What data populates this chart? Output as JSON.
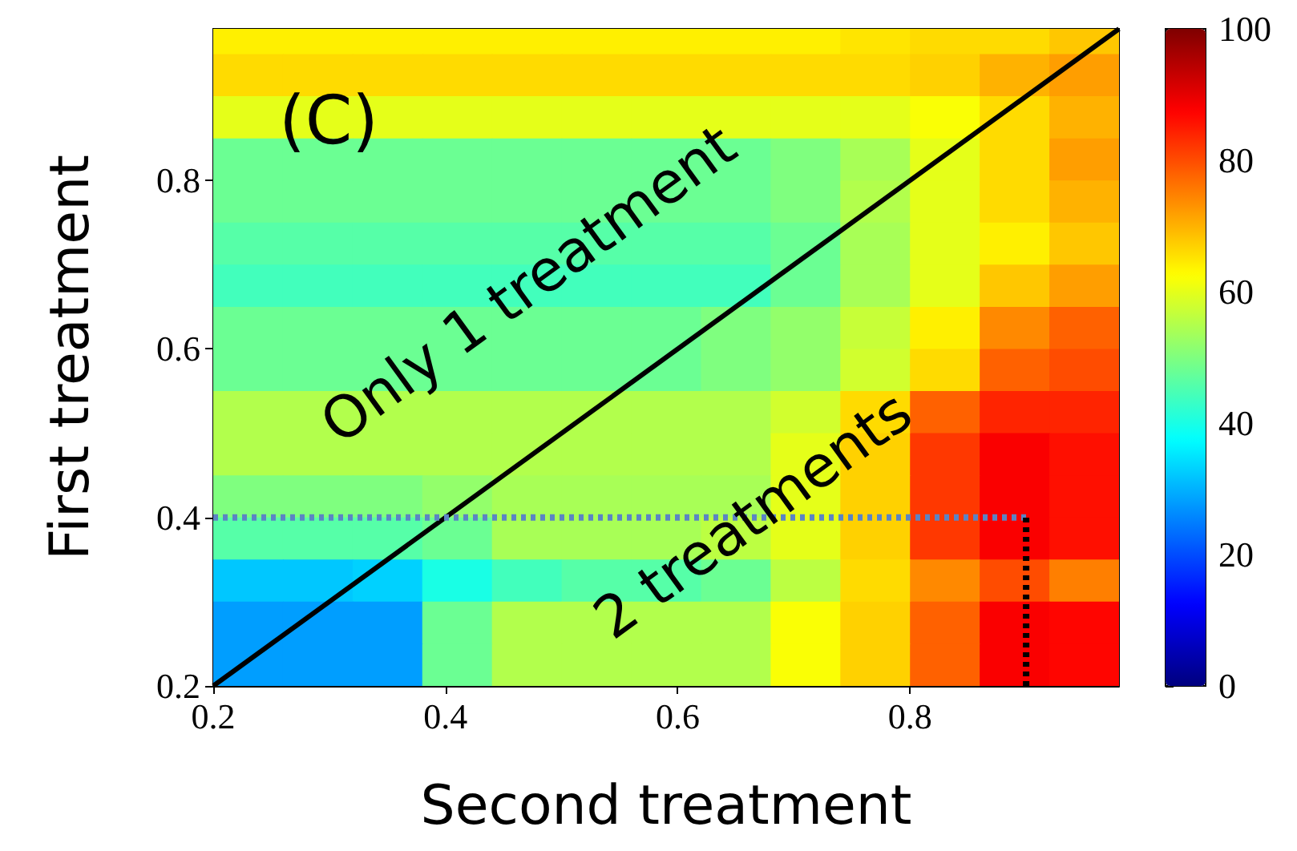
{
  "chart_data": {
    "type": "heatmap",
    "xlabel": "Second treatment",
    "ylabel": "First treatment",
    "annotations": [
      "(C)",
      "Only 1 treatment",
      "2 treatments"
    ],
    "xlim": [
      0.2,
      0.98
    ],
    "xticks": [
      0.2,
      0.4,
      0.6,
      0.8
    ],
    "ylim": [
      0.2,
      0.98
    ],
    "yticks": [
      0.2,
      0.4,
      0.6,
      0.8
    ],
    "x": [
      0.23,
      0.29,
      0.35,
      0.41,
      0.47,
      0.53,
      0.59,
      0.65,
      0.71,
      0.77,
      0.83,
      0.89,
      0.95
    ],
    "y": [
      0.975,
      0.925,
      0.875,
      0.825,
      0.775,
      0.725,
      0.675,
      0.625,
      0.575,
      0.525,
      0.475,
      0.425,
      0.375,
      0.325,
      0.275,
      0.225
    ],
    "cells": [
      [
        64,
        64,
        64,
        64,
        64,
        64,
        64,
        64,
        64,
        65,
        66,
        66,
        68
      ],
      [
        66,
        66,
        66,
        66,
        66,
        66,
        66,
        66,
        66,
        66,
        67,
        70,
        72
      ],
      [
        60,
        60,
        60,
        60,
        60,
        60,
        60,
        60,
        60,
        60,
        62,
        66,
        70
      ],
      [
        48,
        48,
        48,
        48,
        48,
        48,
        48,
        48,
        50,
        54,
        60,
        66,
        72
      ],
      [
        48,
        48,
        48,
        48,
        48,
        48,
        48,
        48,
        50,
        55,
        60,
        66,
        70
      ],
      [
        46,
        46,
        46,
        46,
        46,
        46,
        46,
        46,
        48,
        54,
        60,
        64,
        68
      ],
      [
        44,
        44,
        44,
        44,
        44,
        44,
        44,
        44,
        48,
        54,
        60,
        68,
        72
      ],
      [
        48,
        48,
        48,
        48,
        48,
        48,
        48,
        50,
        52,
        57,
        64,
        74,
        78
      ],
      [
        48,
        48,
        48,
        48,
        48,
        48,
        48,
        50,
        52,
        58,
        66,
        78,
        80
      ],
      [
        55,
        55,
        55,
        55,
        55,
        55,
        55,
        55,
        58,
        66,
        78,
        84,
        84
      ],
      [
        55,
        55,
        55,
        55,
        55,
        55,
        55,
        55,
        60,
        67,
        82,
        88,
        86
      ],
      [
        50,
        50,
        50,
        52,
        54,
        54,
        54,
        54,
        60,
        67,
        82,
        88,
        86
      ],
      [
        46,
        46,
        46,
        48,
        54,
        54,
        54,
        56,
        60,
        67,
        82,
        88,
        86
      ],
      [
        32,
        32,
        33,
        40,
        44,
        46,
        46,
        48,
        56,
        66,
        74,
        80,
        75
      ],
      [
        28,
        28,
        28,
        48,
        55,
        55,
        55,
        55,
        62,
        67,
        78,
        88,
        87
      ],
      [
        28,
        28,
        28,
        48,
        55,
        55,
        55,
        55,
        62,
        67,
        78,
        88,
        87
      ]
    ],
    "clim": [
      0,
      100
    ],
    "cticks": [
      0,
      20,
      40,
      60,
      80,
      100
    ],
    "series": [
      {
        "type": "line",
        "x": [
          0.2,
          0.98
        ],
        "values": [
          0.2,
          0.98
        ],
        "color": "#000000",
        "line_style": "solid"
      },
      {
        "type": "line",
        "x": [
          0.2,
          0.9
        ],
        "values": [
          0.4,
          0.4
        ],
        "color": "#5b84c4",
        "line_style": "dotted"
      },
      {
        "type": "line",
        "x": [
          0.9,
          0.9
        ],
        "values": [
          0.2,
          0.4
        ],
        "color": "#000000",
        "line_style": "dotted"
      }
    ]
  }
}
